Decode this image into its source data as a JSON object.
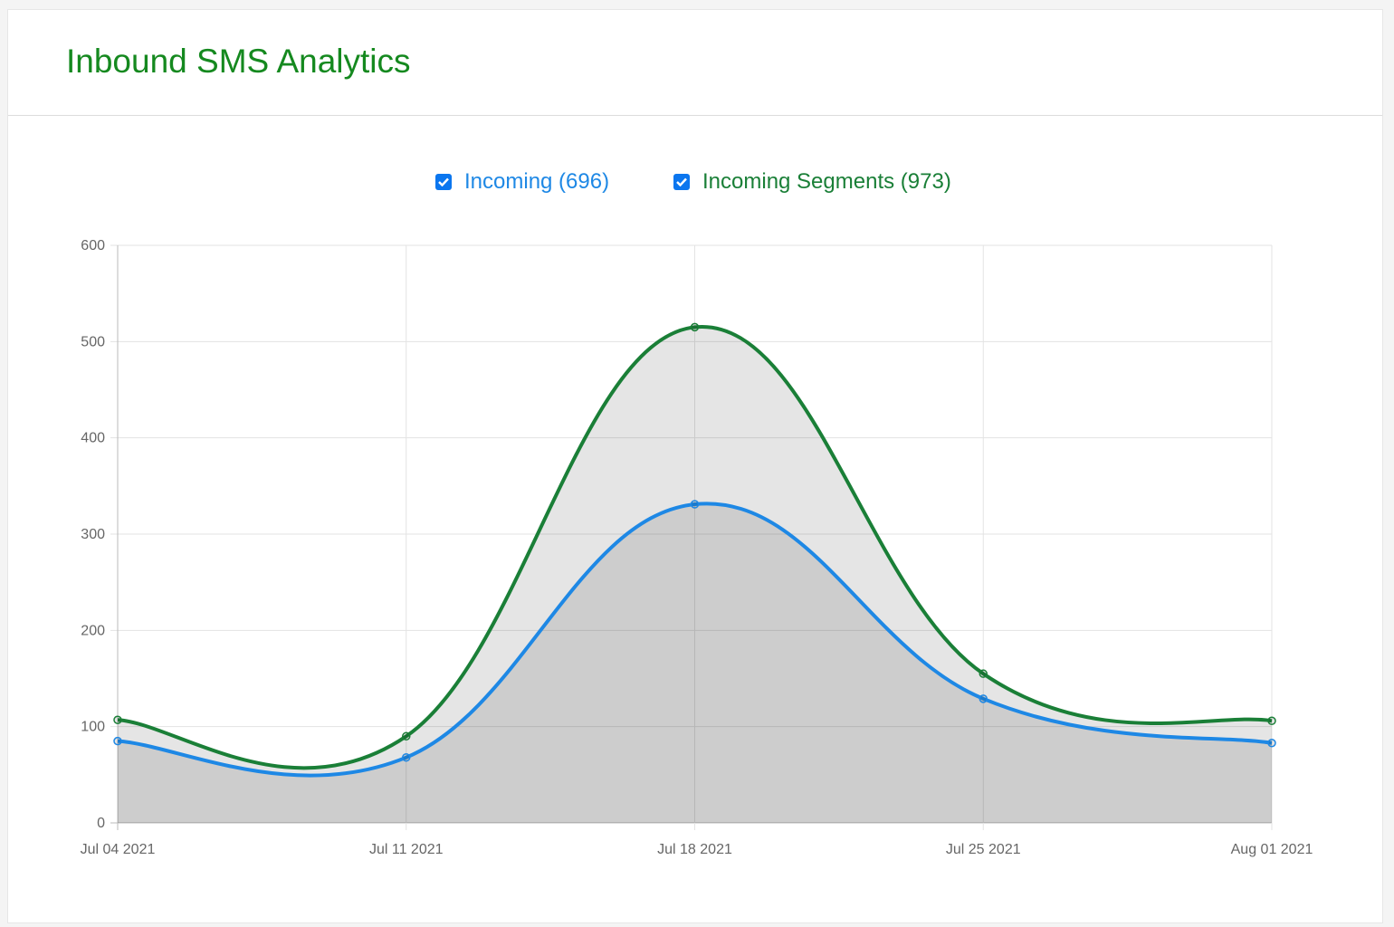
{
  "header": {
    "title": "Inbound SMS Analytics"
  },
  "legend": [
    {
      "label": "Incoming (696)",
      "checked": true,
      "color": "#1e88e5"
    },
    {
      "label": "Incoming Segments (973)",
      "checked": true,
      "color": "#1a7f37"
    }
  ],
  "chart_data": {
    "type": "area",
    "categories": [
      "Jul 04 2021",
      "Jul 11 2021",
      "Jul 18 2021",
      "Jul 25 2021",
      "Aug 01 2021"
    ],
    "series": [
      {
        "name": "Incoming",
        "values": [
          85,
          68,
          331,
          129,
          83
        ],
        "color": "#1e88e5"
      },
      {
        "name": "Incoming Segments",
        "values": [
          107,
          90,
          515,
          155,
          106
        ],
        "color": "#1a7f37"
      }
    ],
    "ylim": [
      0,
      600
    ],
    "yticks": [
      "0",
      "100",
      "200",
      "300",
      "400",
      "500",
      "600"
    ],
    "grid": true,
    "legend_position": "top",
    "fill": "rgba(0,0,0,0.1)"
  }
}
